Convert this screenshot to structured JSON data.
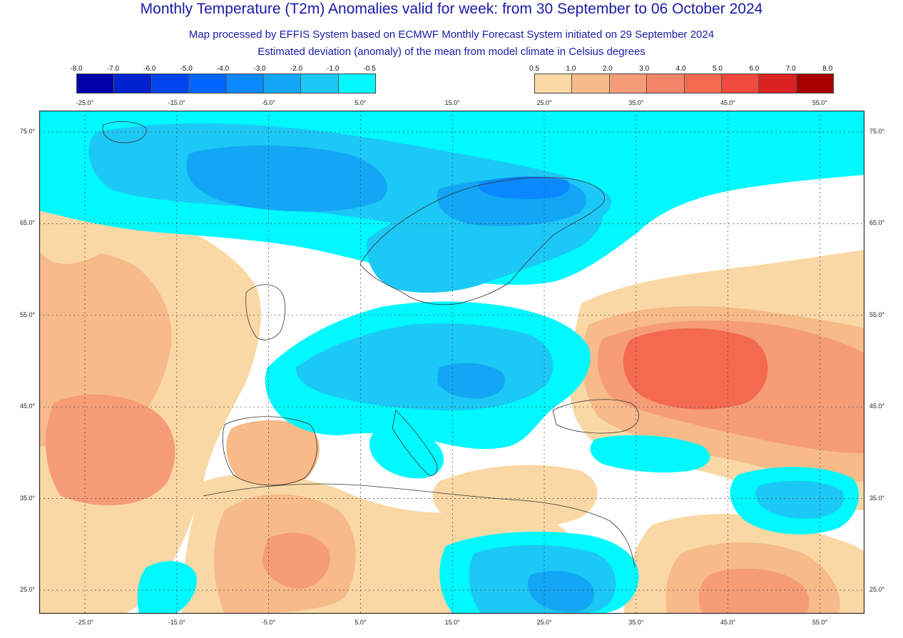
{
  "title": "Monthly Temperature (T2m) Anomalies valid for week: from 30 September to 06 October 2024",
  "subtitle_1": "Map processed by EFFIS System based on ECMWF Monthly Forecast System initiated on 29 September 2024",
  "subtitle_2": "Estimated deviation (anomaly) of the mean from model climate in Celsius degrees",
  "legend": {
    "cold_ticks": [
      "-8.0",
      "-7.0",
      "-6.0",
      "-5.0",
      "-4.0",
      "-3.0",
      "-2.0",
      "-1.0",
      "-0.5"
    ],
    "cold_colors": [
      "#0000aa",
      "#0022cc",
      "#0044ee",
      "#0066ff",
      "#0a88ff",
      "#12a6f5",
      "#1cc8f5",
      "#00f8ff"
    ],
    "warm_ticks": [
      "0.5",
      "1.0",
      "2.0",
      "3.0",
      "4.0",
      "5.0",
      "6.0",
      "7.0",
      "8.0"
    ],
    "warm_colors": [
      "#fad8a5",
      "#f7ba89",
      "#f69c77",
      "#f58668",
      "#f36a50",
      "#ee4a3d",
      "#d92222",
      "#a80000"
    ]
  },
  "axes": {
    "lon_labels": [
      "-25.0°",
      "-15.0°",
      "-5.0°",
      "5.0°",
      "15.0°",
      "25.0°",
      "35.0°",
      "45.0°",
      "55.0°"
    ],
    "lat_labels": [
      "75.0°",
      "65.0°",
      "55.0°",
      "45.0°",
      "35.0°",
      "25.0°"
    ]
  },
  "colors": {
    "title": "#1a1aa8",
    "border_lines": "#333333"
  }
}
